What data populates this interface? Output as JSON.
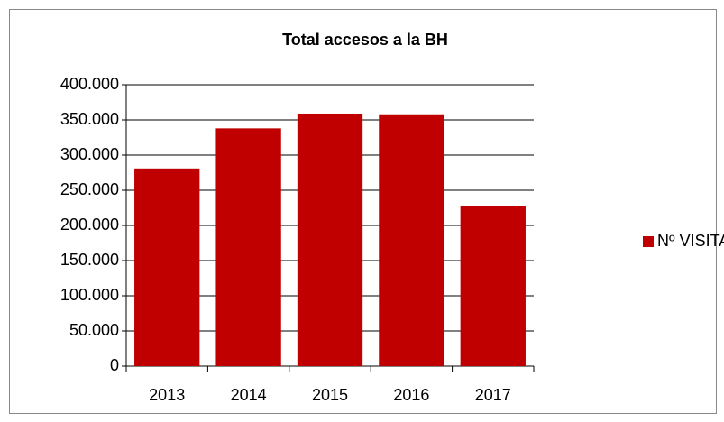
{
  "chart_data": {
    "type": "bar",
    "title": "Total accesos a la BH",
    "categories": [
      "2013",
      "2014",
      "2015",
      "2016",
      "2017"
    ],
    "series": [
      {
        "name": "Nº VISITAS",
        "color": "#c00000",
        "values": [
          281000,
          338000,
          359000,
          358000,
          227000
        ]
      }
    ],
    "ylim": [
      0,
      400000
    ],
    "yticks": [
      0,
      {
        "value": 50000,
        "label": "50.000"
      },
      {
        "value": 100000,
        "label": "100.000"
      },
      {
        "value": 150000,
        "label": "150.000"
      },
      {
        "value": 200000,
        "label": "200.000"
      },
      {
        "value": 250000,
        "label": "250.000"
      },
      {
        "value": 300000,
        "label": "300.000"
      },
      {
        "value": 350000,
        "label": "350.000"
      },
      {
        "value": 400000,
        "label": "400.000"
      }
    ],
    "grid": true,
    "legend": "right"
  }
}
